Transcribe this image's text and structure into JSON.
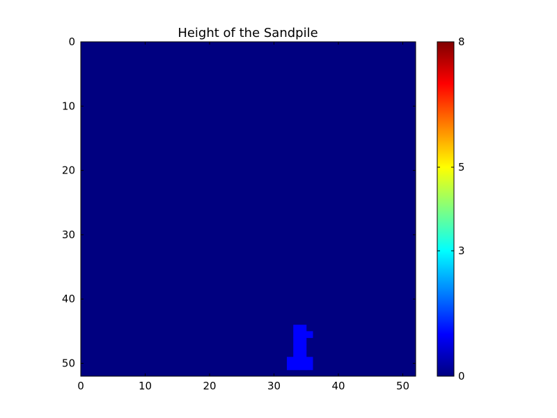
{
  "chart_data": {
    "type": "heatmap",
    "title": "Height of the Sandpile",
    "xlabel": "",
    "ylabel": "",
    "grid_size": [
      52,
      52
    ],
    "xlim": [
      0,
      52
    ],
    "ylim": [
      52,
      0
    ],
    "x_ticks": [
      "0",
      "10",
      "20",
      "30",
      "40",
      "50"
    ],
    "y_ticks": [
      "0",
      "10",
      "20",
      "30",
      "40",
      "50"
    ],
    "x_tick_values": [
      0,
      10,
      20,
      30,
      40,
      50
    ],
    "y_tick_values": [
      0,
      10,
      20,
      30,
      40,
      50
    ],
    "background_value": 0,
    "cells": [
      {
        "row": 44,
        "col": 33,
        "value": 1
      },
      {
        "row": 44,
        "col": 34,
        "value": 1
      },
      {
        "row": 45,
        "col": 33,
        "value": 1
      },
      {
        "row": 45,
        "col": 34,
        "value": 1
      },
      {
        "row": 45,
        "col": 35,
        "value": 1
      },
      {
        "row": 46,
        "col": 33,
        "value": 1
      },
      {
        "row": 46,
        "col": 34,
        "value": 1
      },
      {
        "row": 47,
        "col": 33,
        "value": 1
      },
      {
        "row": 47,
        "col": 34,
        "value": 1
      },
      {
        "row": 48,
        "col": 33,
        "value": 1
      },
      {
        "row": 48,
        "col": 34,
        "value": 1
      },
      {
        "row": 49,
        "col": 32,
        "value": 1
      },
      {
        "row": 49,
        "col": 33,
        "value": 1
      },
      {
        "row": 49,
        "col": 34,
        "value": 1
      },
      {
        "row": 49,
        "col": 35,
        "value": 1
      },
      {
        "row": 50,
        "col": 32,
        "value": 1
      },
      {
        "row": 50,
        "col": 33,
        "value": 1
      },
      {
        "row": 50,
        "col": 34,
        "value": 1
      },
      {
        "row": 50,
        "col": 35,
        "value": 1
      }
    ],
    "colorbar": {
      "colormap": "jet",
      "vmin": 0,
      "vmax": 8,
      "ticks": [
        "0",
        "3",
        "5",
        "8"
      ],
      "tick_values": [
        0,
        3,
        5,
        8
      ]
    }
  }
}
